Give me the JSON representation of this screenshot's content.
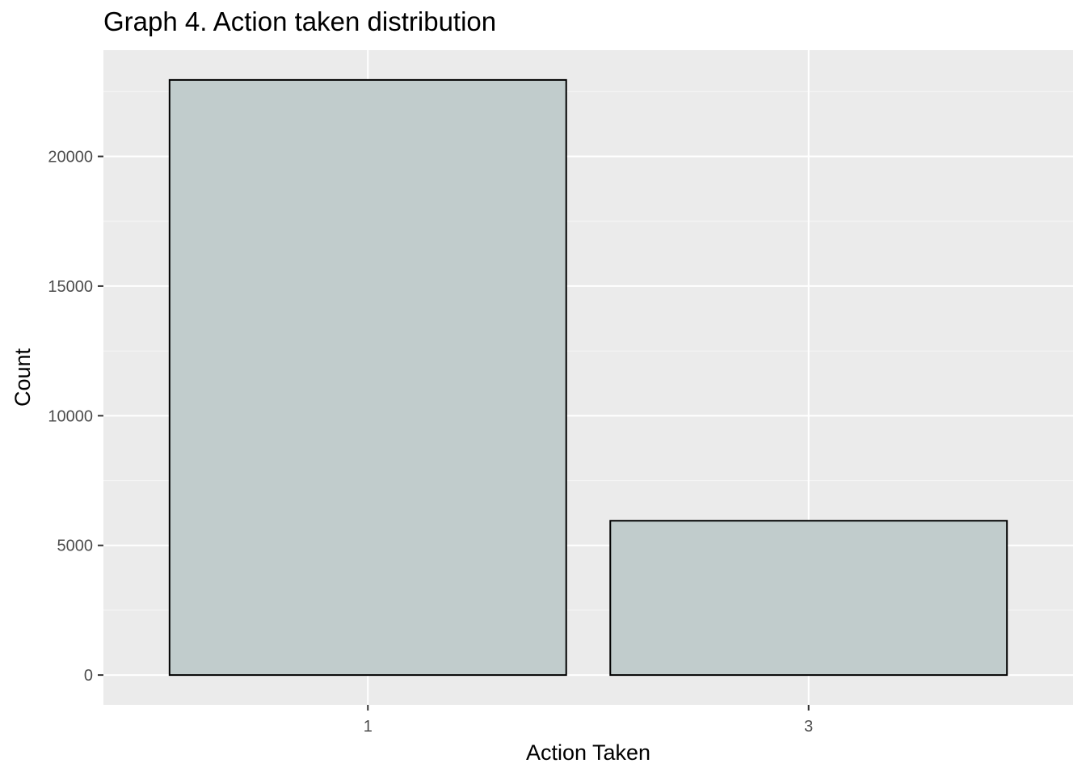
{
  "chart_data": {
    "type": "bar",
    "title": "Graph 4. Action taken distribution",
    "xlabel": "Action Taken",
    "ylabel": "Count",
    "categories": [
      "1",
      "3"
    ],
    "values": [
      22950,
      5950
    ],
    "ylim": [
      -1150,
      24100
    ],
    "yticks": [
      0,
      5000,
      10000,
      15000,
      20000
    ],
    "ytick_labels": [
      "0",
      "5000",
      "10000",
      "15000",
      "20000"
    ],
    "grid": true,
    "legend": "none",
    "colors": {
      "panel_background": "#ebebeb",
      "grid_major": "#ffffff",
      "grid_minor": "#f5f5f5",
      "bar_fill": "#c1cccc",
      "bar_stroke": "#000000",
      "tick_text": "#4d4d4d",
      "tick_line": "#333333"
    }
  }
}
